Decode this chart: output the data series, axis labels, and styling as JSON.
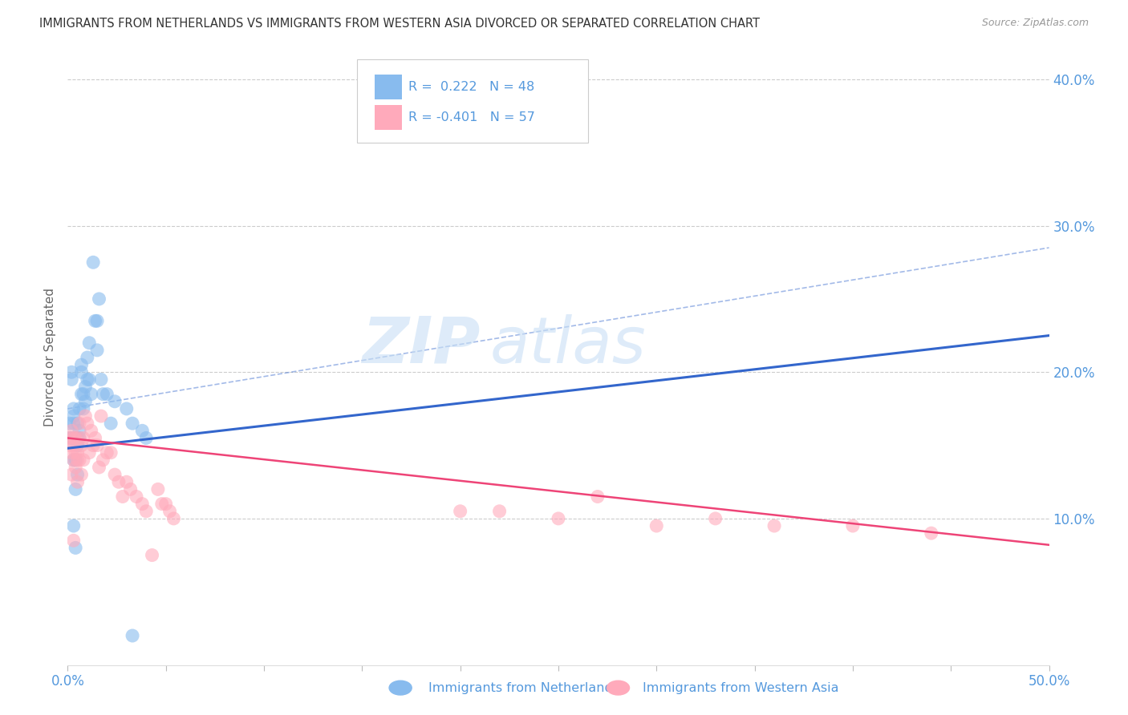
{
  "title": "IMMIGRANTS FROM NETHERLANDS VS IMMIGRANTS FROM WESTERN ASIA DIVORCED OR SEPARATED CORRELATION CHART",
  "source": "Source: ZipAtlas.com",
  "ylabel": "Divorced or Separated",
  "ytick_labels": [
    "40.0%",
    "30.0%",
    "20.0%",
    "10.0%"
  ],
  "ytick_values": [
    0.4,
    0.3,
    0.2,
    0.1
  ],
  "legend_label1": "Immigrants from Netherlands",
  "legend_label2": "Immigrants from Western Asia",
  "R1": "0.222",
  "N1": "48",
  "R2": "-0.401",
  "N2": "57",
  "color_blue": "#88bbee",
  "color_pink": "#ffaabb",
  "color_line_blue": "#3366cc",
  "color_line_pink": "#ee4477",
  "color_text_blue": "#5599dd",
  "watermark_color": "#c8dff5",
  "xlim": [
    0.0,
    0.5
  ],
  "ylim": [
    0.0,
    0.42
  ],
  "blue_x": [
    0.001,
    0.001,
    0.002,
    0.002,
    0.002,
    0.003,
    0.003,
    0.003,
    0.003,
    0.003,
    0.004,
    0.004,
    0.004,
    0.004,
    0.005,
    0.005,
    0.005,
    0.005,
    0.006,
    0.006,
    0.006,
    0.007,
    0.007,
    0.007,
    0.008,
    0.008,
    0.009,
    0.009,
    0.01,
    0.01,
    0.011,
    0.011,
    0.012,
    0.013,
    0.014,
    0.015,
    0.015,
    0.016,
    0.017,
    0.018,
    0.02,
    0.022,
    0.024,
    0.03,
    0.033,
    0.033,
    0.038,
    0.04
  ],
  "blue_y": [
    0.165,
    0.155,
    0.2,
    0.195,
    0.155,
    0.175,
    0.17,
    0.165,
    0.14,
    0.095,
    0.08,
    0.12,
    0.155,
    0.14,
    0.15,
    0.13,
    0.155,
    0.165,
    0.155,
    0.175,
    0.16,
    0.2,
    0.185,
    0.205,
    0.185,
    0.175,
    0.19,
    0.18,
    0.195,
    0.21,
    0.22,
    0.195,
    0.185,
    0.275,
    0.235,
    0.235,
    0.215,
    0.25,
    0.195,
    0.185,
    0.185,
    0.165,
    0.18,
    0.175,
    0.02,
    0.165,
    0.16,
    0.155
  ],
  "pink_x": [
    0.001,
    0.001,
    0.002,
    0.002,
    0.002,
    0.003,
    0.003,
    0.003,
    0.003,
    0.004,
    0.004,
    0.004,
    0.005,
    0.005,
    0.005,
    0.006,
    0.006,
    0.006,
    0.007,
    0.007,
    0.008,
    0.008,
    0.009,
    0.01,
    0.011,
    0.012,
    0.013,
    0.014,
    0.015,
    0.016,
    0.017,
    0.018,
    0.02,
    0.022,
    0.024,
    0.026,
    0.028,
    0.03,
    0.032,
    0.035,
    0.038,
    0.04,
    0.043,
    0.046,
    0.048,
    0.05,
    0.052,
    0.054,
    0.2,
    0.22,
    0.25,
    0.27,
    0.3,
    0.33,
    0.36,
    0.4,
    0.44
  ],
  "pink_y": [
    0.155,
    0.15,
    0.145,
    0.13,
    0.16,
    0.14,
    0.15,
    0.085,
    0.155,
    0.145,
    0.135,
    0.155,
    0.14,
    0.145,
    0.125,
    0.155,
    0.14,
    0.165,
    0.15,
    0.13,
    0.155,
    0.14,
    0.17,
    0.165,
    0.145,
    0.16,
    0.15,
    0.155,
    0.15,
    0.135,
    0.17,
    0.14,
    0.145,
    0.145,
    0.13,
    0.125,
    0.115,
    0.125,
    0.12,
    0.115,
    0.11,
    0.105,
    0.075,
    0.12,
    0.11,
    0.11,
    0.105,
    0.1,
    0.105,
    0.105,
    0.1,
    0.115,
    0.095,
    0.1,
    0.095,
    0.095,
    0.09
  ]
}
